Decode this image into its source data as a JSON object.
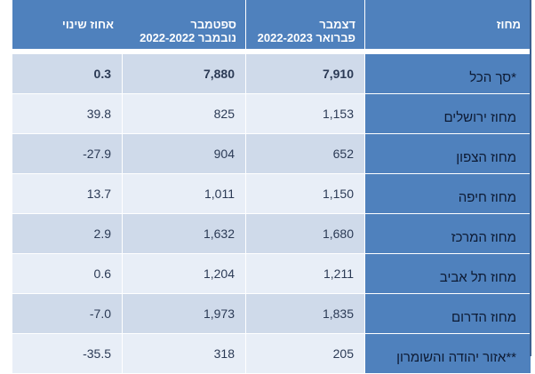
{
  "table": {
    "headers": {
      "pct": "אחוז שינוי",
      "sep_nov": "ספטמבר\n2022-נובמבר 2022",
      "dec_feb": "דצמבר\n2022-פברואר 2023",
      "district": "מחוז"
    },
    "rows": [
      {
        "district": "סך הכל*",
        "dec_feb": "7,910",
        "sep_nov": "7,880",
        "pct": "0.3"
      },
      {
        "district": "מחוז ירושלים",
        "dec_feb": "1,153",
        "sep_nov": "825",
        "pct": "39.8"
      },
      {
        "district": "מחוז הצפון",
        "dec_feb": "652",
        "sep_nov": "904",
        "pct": "-27.9"
      },
      {
        "district": "מחוז חיפה",
        "dec_feb": "1,150",
        "sep_nov": "1,011",
        "pct": "13.7"
      },
      {
        "district": "מחוז המרכז",
        "dec_feb": "1,680",
        "sep_nov": "1,632",
        "pct": "2.9"
      },
      {
        "district": "מחוז תל אביב",
        "dec_feb": "1,211",
        "sep_nov": "1,204",
        "pct": "0.6"
      },
      {
        "district": "מחוז הדרום",
        "dec_feb": "1,835",
        "sep_nov": "1,973",
        "pct": "-7.0"
      },
      {
        "district": "אזור יהודה והשומרון**",
        "dec_feb": "205",
        "sep_nov": "318",
        "pct": "-35.5"
      }
    ]
  }
}
